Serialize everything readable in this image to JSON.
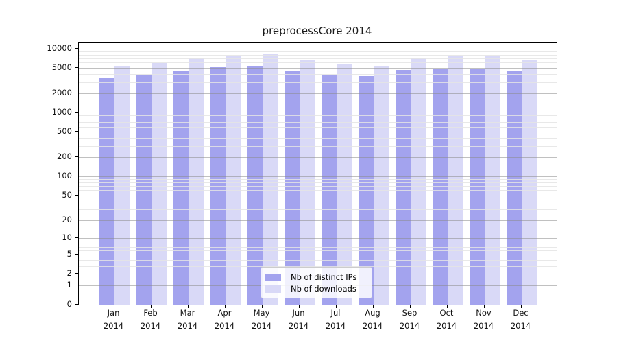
{
  "page": {
    "background": "#ffffff"
  },
  "chart_data": {
    "type": "bar",
    "title": "preprocessCore 2014",
    "categories": [
      "Jan",
      "Feb",
      "Mar",
      "Apr",
      "May",
      "Jun",
      "Jul",
      "Aug",
      "Sep",
      "Oct",
      "Nov",
      "Dec"
    ],
    "x_year_label": "2014",
    "series": [
      {
        "name": "Nb of distinct IPs",
        "color": "#a3a3ee",
        "values": [
          3460,
          3850,
          4500,
          5080,
          5430,
          4430,
          3820,
          3690,
          4600,
          4760,
          4920,
          4470
        ]
      },
      {
        "name": "Nb of downloads",
        "color": "#d9d9f7",
        "values": [
          5340,
          5980,
          7190,
          7750,
          8210,
          6460,
          5670,
          5310,
          6970,
          7550,
          7870,
          6620
        ]
      }
    ],
    "y_axis": {
      "scale": "log1p",
      "ylim": [
        0,
        10000
      ],
      "ticks": [
        {
          "value": 10000,
          "label": "10000"
        },
        {
          "value": 5000,
          "label": "5000"
        },
        {
          "value": 2000,
          "label": "2000"
        },
        {
          "value": 1000,
          "label": "1000"
        },
        {
          "value": 500,
          "label": "500"
        },
        {
          "value": 200,
          "label": "200"
        },
        {
          "value": 100,
          "label": "100"
        },
        {
          "value": 50,
          "label": "50"
        },
        {
          "value": 20,
          "label": "20"
        },
        {
          "value": 10,
          "label": "10"
        },
        {
          "value": 5,
          "label": "5"
        },
        {
          "value": 2,
          "label": "2"
        },
        {
          "value": 1,
          "label": "1"
        },
        {
          "value": 0,
          "label": "0"
        }
      ]
    },
    "grid": {
      "major_color": "rgba(140,140,140,0.55)",
      "minor_color": "rgba(228,228,228,0.85)",
      "drawn_over_bars": true
    },
    "legend": {
      "position": "bottom-center",
      "entries": [
        "Nb of distinct IPs",
        "Nb of downloads"
      ]
    }
  }
}
